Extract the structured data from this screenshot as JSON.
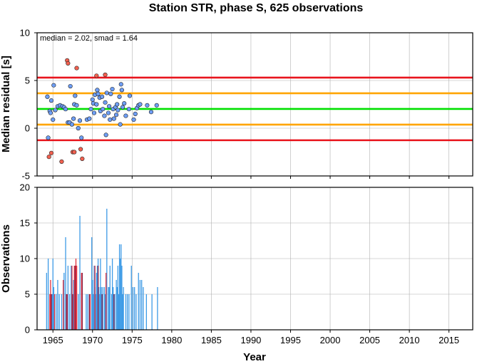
{
  "chart_data": [
    {
      "type": "scatter",
      "title": "Station STR, phase S, 625 observations",
      "ylabel": "Median residual [s]",
      "annotation": "median = 2.02, smad = 1.64",
      "xlim": [
        1963,
        2018
      ],
      "ylim": [
        -5,
        10
      ],
      "x_ticks": [
        1965,
        1970,
        1975,
        1980,
        1985,
        1990,
        1995,
        2000,
        2005,
        2010,
        2015
      ],
      "y_ticks": [
        -5,
        0,
        5,
        10
      ],
      "grid": true,
      "reference_lines": [
        {
          "name": "median",
          "value": 2.02,
          "color": "#00e000"
        },
        {
          "name": "+1 smad",
          "value": 3.66,
          "color": "#ffa500"
        },
        {
          "name": "-1 smad",
          "value": 0.38,
          "color": "#ffa500"
        },
        {
          "name": "+2 smad",
          "value": 5.3,
          "color": "#e8141c"
        },
        {
          "name": "-2 smad",
          "value": -1.26,
          "color": "#e8141c"
        }
      ],
      "series": [
        {
          "color": "#6e9ef5",
          "points": [
            [
              1964.3,
              3.3
            ],
            [
              1964.4,
              -1.0
            ],
            [
              1964.6,
              1.8
            ],
            [
              1964.7,
              1.6
            ],
            [
              1964.8,
              2.9
            ],
            [
              1965.0,
              0.9
            ],
            [
              1965.1,
              4.5
            ],
            [
              1965.3,
              1.9
            ],
            [
              1965.6,
              2.3
            ],
            [
              1965.9,
              2.4
            ],
            [
              1966.2,
              2.3
            ],
            [
              1966.4,
              2.2
            ],
            [
              1966.6,
              2.0
            ],
            [
              1966.9,
              0.6
            ],
            [
              1967.1,
              0.6
            ],
            [
              1967.2,
              4.4
            ],
            [
              1967.4,
              0.4
            ],
            [
              1967.6,
              1.0
            ],
            [
              1967.7,
              2.5
            ],
            [
              1967.8,
              3.4
            ],
            [
              1968.0,
              2.4
            ],
            [
              1968.2,
              0.0
            ],
            [
              1968.4,
              0.8
            ],
            [
              1968.6,
              -1.0
            ],
            [
              1969.3,
              0.9
            ],
            [
              1969.6,
              1.0
            ],
            [
              1969.8,
              2.0
            ],
            [
              1970.0,
              3.0
            ],
            [
              1970.1,
              2.6
            ],
            [
              1970.2,
              1.6
            ],
            [
              1970.3,
              3.5
            ],
            [
              1970.5,
              2.5
            ],
            [
              1970.6,
              4.0
            ],
            [
              1970.7,
              3.6
            ],
            [
              1970.9,
              3.2
            ],
            [
              1971.0,
              1.8
            ],
            [
              1971.2,
              3.3
            ],
            [
              1971.3,
              2.0
            ],
            [
              1971.5,
              1.3
            ],
            [
              1971.6,
              2.7
            ],
            [
              1971.7,
              -0.7
            ],
            [
              1971.8,
              3.7
            ],
            [
              1972.0,
              1.6
            ],
            [
              1972.1,
              2.3
            ],
            [
              1972.2,
              0.9
            ],
            [
              1972.3,
              3.6
            ],
            [
              1972.5,
              4.1
            ],
            [
              1972.6,
              2.0
            ],
            [
              1972.7,
              1.0
            ],
            [
              1972.9,
              2.2
            ],
            [
              1973.0,
              1.4
            ],
            [
              1973.1,
              2.5
            ],
            [
              1973.2,
              1.9
            ],
            [
              1973.4,
              3.3
            ],
            [
              1973.5,
              0.4
            ],
            [
              1973.6,
              4.6
            ],
            [
              1973.7,
              4.0
            ],
            [
              1973.8,
              2.2
            ],
            [
              1974.0,
              2.6
            ],
            [
              1974.2,
              1.3
            ],
            [
              1974.6,
              2.0
            ],
            [
              1974.7,
              3.4
            ],
            [
              1975.2,
              0.9
            ],
            [
              1975.4,
              1.5
            ],
            [
              1975.6,
              2.1
            ],
            [
              1975.8,
              2.4
            ],
            [
              1976.0,
              2.5
            ],
            [
              1976.9,
              2.4
            ],
            [
              1977.4,
              1.7
            ],
            [
              1978.1,
              2.4
            ]
          ]
        },
        {
          "color": "#f26150",
          "points": [
            [
              1964.5,
              -3.0
            ],
            [
              1964.8,
              -2.6
            ],
            [
              1966.1,
              -3.5
            ],
            [
              1966.8,
              7.1
            ],
            [
              1966.9,
              6.8
            ],
            [
              1967.5,
              -2.5
            ],
            [
              1967.7,
              -2.5
            ],
            [
              1968.0,
              6.3
            ],
            [
              1968.5,
              -2.2
            ],
            [
              1968.7,
              -3.2
            ],
            [
              1970.5,
              5.5
            ],
            [
              1971.6,
              5.6
            ]
          ]
        }
      ]
    },
    {
      "type": "bar",
      "title": "",
      "xlabel": "Year",
      "ylabel": "Observations",
      "xlim": [
        1963,
        2018
      ],
      "ylim": [
        0,
        20
      ],
      "x_ticks": [
        1965,
        1970,
        1975,
        1980,
        1985,
        1990,
        1995,
        2000,
        2005,
        2010,
        2015
      ],
      "y_ticks": [
        0,
        5,
        10,
        15,
        20
      ],
      "grid": true,
      "series": [
        {
          "color": "#3e9be6",
          "bars": [
            [
              1964.2,
              8
            ],
            [
              1964.4,
              10
            ],
            [
              1964.9,
              5
            ],
            [
              1965.0,
              10
            ],
            [
              1965.1,
              6
            ],
            [
              1965.4,
              5
            ],
            [
              1965.6,
              7
            ],
            [
              1965.8,
              5
            ],
            [
              1966.1,
              5
            ],
            [
              1966.4,
              8
            ],
            [
              1966.6,
              13
            ],
            [
              1966.9,
              9
            ],
            [
              1967.1,
              5
            ],
            [
              1967.3,
              9
            ],
            [
              1967.6,
              7
            ],
            [
              1968.2,
              5
            ],
            [
              1968.4,
              16
            ],
            [
              1969.2,
              5
            ],
            [
              1969.4,
              5
            ],
            [
              1969.9,
              13
            ],
            [
              1970.0,
              7
            ],
            [
              1970.1,
              5
            ],
            [
              1970.2,
              9
            ],
            [
              1970.3,
              6
            ],
            [
              1970.4,
              5
            ],
            [
              1970.5,
              8
            ],
            [
              1970.6,
              9
            ],
            [
              1970.7,
              10
            ],
            [
              1970.8,
              6
            ],
            [
              1970.9,
              5
            ],
            [
              1971.0,
              10
            ],
            [
              1971.1,
              6
            ],
            [
              1971.3,
              6
            ],
            [
              1971.5,
              6
            ],
            [
              1971.6,
              5
            ],
            [
              1971.8,
              17
            ],
            [
              1972.0,
              6
            ],
            [
              1972.1,
              6
            ],
            [
              1972.2,
              9
            ],
            [
              1972.4,
              5
            ],
            [
              1972.5,
              10
            ],
            [
              1972.6,
              6
            ],
            [
              1972.8,
              5
            ],
            [
              1973.0,
              7
            ],
            [
              1973.1,
              6
            ],
            [
              1973.2,
              9
            ],
            [
              1973.3,
              5
            ],
            [
              1973.4,
              12
            ],
            [
              1973.5,
              10
            ],
            [
              1973.6,
              12
            ],
            [
              1973.7,
              9
            ],
            [
              1973.8,
              5
            ],
            [
              1973.9,
              6
            ],
            [
              1974.2,
              5
            ],
            [
              1974.4,
              5
            ],
            [
              1974.6,
              5
            ],
            [
              1974.9,
              9
            ],
            [
              1975.1,
              6
            ],
            [
              1975.3,
              6
            ],
            [
              1975.5,
              5
            ],
            [
              1975.8,
              8
            ],
            [
              1976.0,
              7
            ],
            [
              1976.2,
              7
            ],
            [
              1976.4,
              6
            ],
            [
              1976.8,
              5
            ],
            [
              1977.5,
              5
            ],
            [
              1978.2,
              6
            ]
          ]
        },
        {
          "color": "#e0303e",
          "bars": [
            [
              1964.6,
              5
            ],
            [
              1964.7,
              7
            ],
            [
              1965.2,
              5
            ],
            [
              1966.3,
              7
            ],
            [
              1966.8,
              5
            ],
            [
              1967.4,
              9
            ],
            [
              1967.7,
              9
            ],
            [
              1967.9,
              10
            ],
            [
              1968.0,
              9
            ],
            [
              1968.6,
              8
            ],
            [
              1969.7,
              5
            ],
            [
              1970.3,
              9
            ],
            [
              1971.7,
              8
            ]
          ]
        },
        {
          "color": "#8a2246",
          "bars": [
            [
              1964.8,
              5
            ],
            [
              1966.7,
              5
            ],
            [
              1967.5,
              5
            ],
            [
              1967.8,
              9
            ],
            [
              1968.7,
              8
            ],
            [
              1969.6,
              5
            ],
            [
              1970.7,
              9
            ],
            [
              1971.2,
              5
            ],
            [
              1972.7,
              5
            ]
          ]
        }
      ]
    }
  ]
}
